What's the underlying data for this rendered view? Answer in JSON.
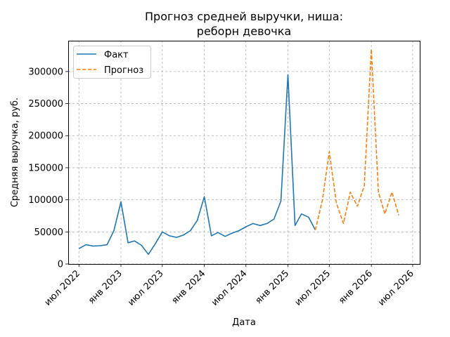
{
  "chart_data": {
    "type": "line",
    "title_lines": [
      "Прогноз средней выручки, ниша:",
      "реборн девочка"
    ],
    "xlabel": "Дата",
    "ylabel": "Средняя выручка, руб.",
    "xlim": [
      "2022-05-15",
      "2026-08-01"
    ],
    "ylim": [
      0,
      348000
    ],
    "x_ticks": [
      {
        "date": "2022-07-01",
        "label": "июл 2022"
      },
      {
        "date": "2023-01-01",
        "label": "янв 2023"
      },
      {
        "date": "2023-07-01",
        "label": "июл 2023"
      },
      {
        "date": "2024-01-01",
        "label": "янв 2024"
      },
      {
        "date": "2024-07-01",
        "label": "июл 2024"
      },
      {
        "date": "2025-01-01",
        "label": "янв 2025"
      },
      {
        "date": "2025-07-01",
        "label": "июл 2025"
      },
      {
        "date": "2026-01-01",
        "label": "янв 2026"
      },
      {
        "date": "2026-07-01",
        "label": "июл 2026"
      }
    ],
    "y_ticks": [
      {
        "value": 0,
        "label": "0"
      },
      {
        "value": 50000,
        "label": "50000"
      },
      {
        "value": 100000,
        "label": "100000"
      },
      {
        "value": 150000,
        "label": "150000"
      },
      {
        "value": 200000,
        "label": "200000"
      },
      {
        "value": 250000,
        "label": "250000"
      },
      {
        "value": 300000,
        "label": "300000"
      }
    ],
    "grid": true,
    "legend_position": "top-left",
    "series": [
      {
        "name": "Факт",
        "color": "#1f77b4",
        "style": "solid",
        "points": [
          [
            "2022-07-01",
            24000
          ],
          [
            "2022-08-01",
            30000
          ],
          [
            "2022-09-01",
            28000
          ],
          [
            "2022-10-01",
            28500
          ],
          [
            "2022-11-01",
            30000
          ],
          [
            "2022-12-01",
            52000
          ],
          [
            "2023-01-01",
            97000
          ],
          [
            "2023-02-01",
            33000
          ],
          [
            "2023-03-01",
            36000
          ],
          [
            "2023-04-01",
            29000
          ],
          [
            "2023-05-01",
            15000
          ],
          [
            "2023-06-01",
            32000
          ],
          [
            "2023-07-01",
            50000
          ],
          [
            "2023-08-01",
            44000
          ],
          [
            "2023-09-01",
            41500
          ],
          [
            "2023-10-01",
            45000
          ],
          [
            "2023-11-01",
            52000
          ],
          [
            "2023-12-01",
            68000
          ],
          [
            "2024-01-01",
            105000
          ],
          [
            "2024-02-01",
            44000
          ],
          [
            "2024-03-01",
            49000
          ],
          [
            "2024-04-01",
            43000
          ],
          [
            "2024-05-01",
            48000
          ],
          [
            "2024-06-01",
            52000
          ],
          [
            "2024-07-01",
            58000
          ],
          [
            "2024-08-01",
            63000
          ],
          [
            "2024-09-01",
            60000
          ],
          [
            "2024-10-01",
            63000
          ],
          [
            "2024-11-01",
            70000
          ],
          [
            "2024-12-01",
            98000
          ],
          [
            "2025-01-01",
            295000
          ],
          [
            "2025-02-01",
            60000
          ],
          [
            "2025-03-01",
            78000
          ],
          [
            "2025-04-01",
            73000
          ],
          [
            "2025-05-01",
            53000
          ]
        ]
      },
      {
        "name": "Прогноз",
        "color": "#ff7f0e",
        "style": "dashed",
        "points": [
          [
            "2025-05-01",
            53000
          ],
          [
            "2025-06-01",
            100000
          ],
          [
            "2025-07-01",
            175000
          ],
          [
            "2025-08-01",
            95000
          ],
          [
            "2025-09-01",
            63000
          ],
          [
            "2025-10-01",
            112000
          ],
          [
            "2025-11-01",
            90000
          ],
          [
            "2025-12-01",
            122000
          ],
          [
            "2026-01-01",
            335000
          ],
          [
            "2026-02-01",
            112000
          ],
          [
            "2026-03-01",
            78000
          ],
          [
            "2026-04-01",
            112000
          ],
          [
            "2026-05-01",
            76000
          ]
        ]
      }
    ]
  }
}
